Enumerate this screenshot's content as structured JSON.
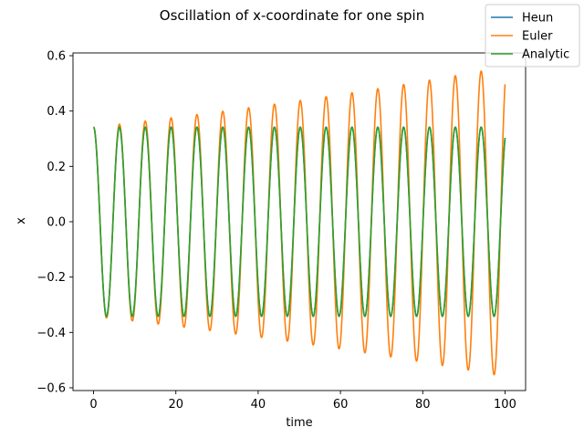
{
  "chart_data": {
    "type": "line",
    "title": "Oscillation of x-coordinate for one spin",
    "xlabel": "time",
    "ylabel": "x",
    "xlim": [
      -5,
      105
    ],
    "ylim": [
      -0.61,
      0.61
    ],
    "xticks": [
      0,
      20,
      40,
      60,
      80,
      100
    ],
    "xtick_labels": [
      "0",
      "20",
      "40",
      "60",
      "80",
      "100"
    ],
    "yticks": [
      -0.6,
      -0.4,
      -0.2,
      0.0,
      0.2,
      0.4,
      0.6
    ],
    "ytick_labels": [
      "−0.6",
      "−0.4",
      "−0.2",
      "0.0",
      "0.2",
      "0.4",
      "0.6"
    ],
    "grid": false,
    "legend_position": "top-right",
    "period": 6.28,
    "series": [
      {
        "name": "Heun",
        "color": "#1f77b4",
        "x_start": 0,
        "x_end": 100,
        "initial_amplitude": 0.342,
        "final_amplitude": 0.342
      },
      {
        "name": "Euler",
        "color": "#ff7f0e",
        "x_start": 0,
        "x_end": 100,
        "initial_amplitude": 0.342,
        "final_amplitude": 0.56
      },
      {
        "name": "Analytic",
        "color": "#2ca02c",
        "x_start": 0,
        "x_end": 100,
        "initial_amplitude": 0.342,
        "final_amplitude": 0.342
      }
    ]
  }
}
